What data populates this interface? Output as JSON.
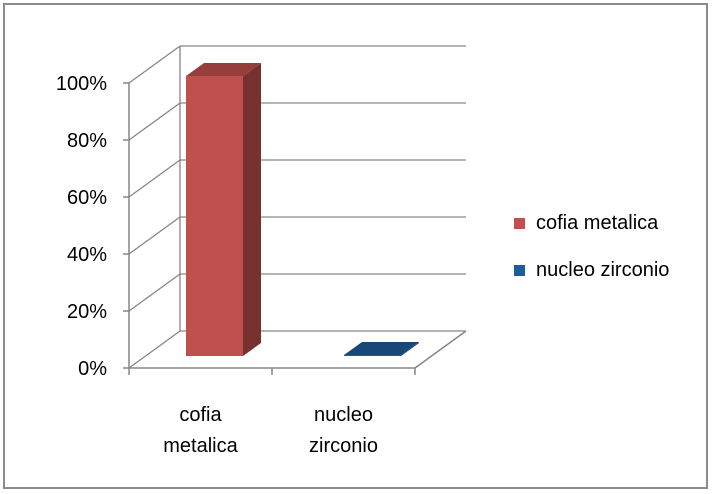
{
  "chart_data": {
    "type": "bar",
    "categories": [
      "cofia metalica",
      "nucleo zirconio"
    ],
    "category_lines": [
      [
        "cofia",
        "metalica"
      ],
      [
        "nucleo",
        "zirconio"
      ]
    ],
    "series": [
      {
        "name": "cofia metalica",
        "values": [
          100,
          null
        ]
      },
      {
        "name": "nucleo zirconio",
        "values": [
          null,
          0
        ]
      }
    ],
    "y_ticks": [
      "0%",
      "20%",
      "40%",
      "60%",
      "80%",
      "100%"
    ],
    "ylim": [
      0,
      100
    ],
    "grid": true,
    "legend_position": "right",
    "style": "3d-column",
    "colors": {
      "cofia metalica": "#C0504D",
      "nucleo zirconio": "#1F5C99",
      "gridline": "#868686",
      "axis": "#868686"
    }
  }
}
